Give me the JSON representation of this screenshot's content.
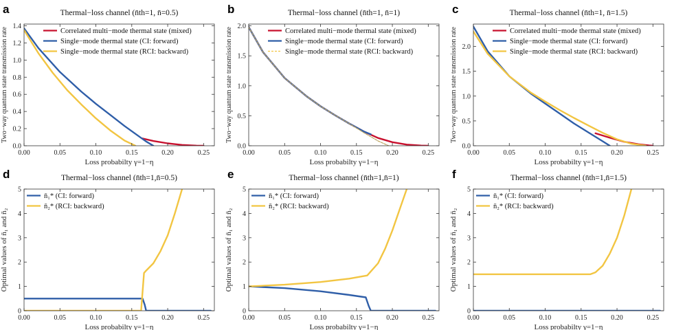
{
  "colors": {
    "red": "#c8102e",
    "blue": "#2f5ea8",
    "yellow": "#f2c542",
    "axis": "#333333"
  },
  "chart_data": [
    {
      "id": "a",
      "letter": "a",
      "type": "line",
      "title": "Thermal−loss channel (n̄th=1, n̄=0.5)",
      "xlabel": "Loss probabilty γ=1−η",
      "ylabel": "Two−way quantum state transmission rate",
      "xlim": [
        0,
        0.265
      ],
      "ylim": [
        0,
        1.42
      ],
      "xticks": [
        0,
        0.05,
        0.1,
        0.15,
        0.2,
        0.25
      ],
      "xtick_labels": [
        "0.00",
        "0.05",
        "0.10",
        "0.15",
        "0.20",
        "0.25"
      ],
      "yticks": [
        0,
        0.2,
        0.4,
        0.6,
        0.8,
        1.0,
        1.2,
        1.4
      ],
      "ytick_labels": [
        "0.0",
        "0.2",
        "0.4",
        "0.6",
        "0.8",
        "1.0",
        "1.2",
        "1.4"
      ],
      "legend": "top-right",
      "series": [
        {
          "name": "Correlated multi−mode thermal state (mixed)",
          "color": "red",
          "style": "solid",
          "x": [
            0.165,
            0.18,
            0.2,
            0.22,
            0.24,
            0.25
          ],
          "y": [
            0.085,
            0.055,
            0.028,
            0.01,
            0.002,
            0.0
          ]
        },
        {
          "name": "Single−mode thermal state (CI: forward)",
          "color": "blue",
          "style": "solid",
          "x": [
            0,
            0.02,
            0.05,
            0.08,
            0.1,
            0.12,
            0.14,
            0.16,
            0.17,
            0.18
          ],
          "y": [
            1.37,
            1.14,
            0.86,
            0.63,
            0.49,
            0.36,
            0.23,
            0.11,
            0.05,
            0.0
          ]
        },
        {
          "name": "Single−mode thermal state (RCI: backward)",
          "color": "yellow",
          "style": "solid",
          "x": [
            0,
            0.02,
            0.04,
            0.06,
            0.08,
            0.1,
            0.12,
            0.14,
            0.155
          ],
          "y": [
            1.35,
            1.08,
            0.85,
            0.65,
            0.48,
            0.32,
            0.18,
            0.06,
            0.0
          ]
        }
      ],
      "legend_entries": [
        "Correlated multi−mode thermal state (mixed)",
        "Single−mode thermal state (CI: forward)",
        "Single−mode thermal state (RCI: backward)"
      ]
    },
    {
      "id": "b",
      "letter": "b",
      "type": "line",
      "title": "Thermal−loss channel (n̄th=1, n̄=1)",
      "xlabel": "Loss probabilty γ=1−η",
      "ylabel": "Two−way quantum state transmission rate",
      "xlim": [
        0,
        0.265
      ],
      "ylim": [
        0,
        2.03
      ],
      "xticks": [
        0,
        0.05,
        0.1,
        0.15,
        0.2,
        0.25
      ],
      "xtick_labels": [
        "0.00",
        "0.05",
        "0.10",
        "0.15",
        "0.20",
        "0.25"
      ],
      "yticks": [
        0,
        0.5,
        1.0,
        1.5,
        2.0
      ],
      "ytick_labels": [
        "0.0",
        "0.5",
        "1.0",
        "1.5",
        "2.0"
      ],
      "legend": "top-right",
      "series": [
        {
          "name": "Correlated multi−mode thermal state (mixed)",
          "color": "red",
          "style": "solid",
          "x": [
            0,
            0.02,
            0.05,
            0.08,
            0.1,
            0.12,
            0.14,
            0.16,
            0.18,
            0.2,
            0.22,
            0.24,
            0.25
          ],
          "y": [
            1.98,
            1.56,
            1.13,
            0.83,
            0.66,
            0.51,
            0.37,
            0.24,
            0.13,
            0.06,
            0.02,
            0.004,
            0.0
          ]
        },
        {
          "name": "Single−mode thermal state (CI: forward)",
          "color": "blue",
          "style": "solid",
          "x": [
            0,
            0.02,
            0.05,
            0.08,
            0.1,
            0.12,
            0.14,
            0.16,
            0.17
          ],
          "y": [
            1.98,
            1.56,
            1.13,
            0.83,
            0.66,
            0.51,
            0.37,
            0.24,
            0.19
          ]
        },
        {
          "name": "Single−mode thermal state (RCI: backward)",
          "color": "yellow",
          "style": "dashed",
          "x": [
            0,
            0.02,
            0.05,
            0.08,
            0.1,
            0.12,
            0.14,
            0.16,
            0.18,
            0.195
          ],
          "y": [
            1.98,
            1.56,
            1.13,
            0.83,
            0.66,
            0.51,
            0.37,
            0.22,
            0.08,
            0.0
          ]
        }
      ],
      "legend_entries": [
        "Correlated multi−mode thermal state (mixed)",
        "Single−mode thermal state (CI: forward)",
        "Single−mode thermal state (RCI: backward)"
      ]
    },
    {
      "id": "c",
      "letter": "c",
      "type": "line",
      "title": "Thermal−loss channel (n̄th=1, n̄=1.5)",
      "xlabel": "Loss probabilty γ=1−η",
      "ylabel": "Two−way quantum state transmission rate",
      "xlim": [
        0,
        0.265
      ],
      "ylim": [
        0,
        2.45
      ],
      "xticks": [
        0,
        0.05,
        0.1,
        0.15,
        0.2,
        0.25
      ],
      "xtick_labels": [
        "0.00",
        "0.05",
        "0.10",
        "0.15",
        "0.20",
        "0.25"
      ],
      "yticks": [
        0,
        0.5,
        1.0,
        1.5,
        2.0
      ],
      "ytick_labels": [
        "0.0",
        "0.5",
        "1.0",
        "1.5",
        "2.0"
      ],
      "legend": "top-right",
      "series": [
        {
          "name": "Correlated multi−mode thermal state (mixed)",
          "color": "red",
          "style": "solid",
          "x": [
            0.17,
            0.19,
            0.21,
            0.23,
            0.245,
            0.25
          ],
          "y": [
            0.25,
            0.16,
            0.08,
            0.03,
            0.005,
            0.0
          ]
        },
        {
          "name": "Single−mode thermal state (CI: forward)",
          "color": "blue",
          "style": "solid",
          "x": [
            0,
            0.02,
            0.05,
            0.08,
            0.1,
            0.12,
            0.14,
            0.16,
            0.18,
            0.19
          ],
          "y": [
            2.4,
            1.9,
            1.4,
            1.05,
            0.85,
            0.65,
            0.45,
            0.27,
            0.09,
            0.0
          ]
        },
        {
          "name": "Single−mode thermal state (RCI: backward)",
          "color": "yellow",
          "style": "solid",
          "x": [
            0,
            0.02,
            0.05,
            0.08,
            0.1,
            0.12,
            0.14,
            0.16,
            0.18,
            0.2,
            0.22,
            0.24
          ],
          "y": [
            2.3,
            1.85,
            1.4,
            1.07,
            0.89,
            0.72,
            0.56,
            0.41,
            0.26,
            0.13,
            0.04,
            0.0
          ]
        }
      ],
      "legend_entries": [
        "Correlated multi−mode thermal state (mixed)",
        "Single−mode thermal state (CI: forward)",
        "Single−mode thermal state (RCI: backward)"
      ]
    },
    {
      "id": "d",
      "letter": "d",
      "type": "line",
      "title": "Thermal−loss channel (n̄th=1,n̄=0.5)",
      "xlabel": "Loss probabilty γ=1−η",
      "ylabel": "Optimal values of n̄₁ and n̄₂",
      "xlim": [
        0,
        0.265
      ],
      "ylim": [
        0,
        5
      ],
      "xticks": [
        0,
        0.05,
        0.1,
        0.15,
        0.2,
        0.25
      ],
      "xtick_labels": [
        "0.00",
        "0.05",
        "0.10",
        "0.15",
        "0.20",
        "0.25"
      ],
      "yticks": [
        0,
        1,
        2,
        3,
        4,
        5
      ],
      "ytick_labels": [
        "0",
        "1",
        "2",
        "3",
        "4",
        "5"
      ],
      "legend": "top-left",
      "series": [
        {
          "name": "n̄₁* (CI: forward)",
          "color": "blue",
          "style": "solid",
          "x": [
            0,
            0.165,
            0.168,
            0.17,
            0.26
          ],
          "y": [
            0.5,
            0.5,
            0.25,
            0.0,
            0.0
          ]
        },
        {
          "name": "n̄₂* (RCI: backward)",
          "color": "yellow",
          "style": "solid",
          "x": [
            0,
            0.163,
            0.167,
            0.17,
            0.18,
            0.19,
            0.2,
            0.21,
            0.22
          ],
          "y": [
            0,
            0,
            1.55,
            1.65,
            1.95,
            2.45,
            3.1,
            4.0,
            5.0
          ]
        }
      ],
      "legend_entries": [
        "n̄₁* (CI: forward)",
        "n̄₂* (RCI: backward)"
      ]
    },
    {
      "id": "e",
      "letter": "e",
      "type": "line",
      "title": "Thermal−loss channel (n̄th=1,n̄=1)",
      "xlabel": "Loss probabilty γ=1−η",
      "ylabel": "Optimal values of n̄₁ and n̄₂",
      "xlim": [
        0,
        0.265
      ],
      "ylim": [
        0,
        5
      ],
      "xticks": [
        0,
        0.05,
        0.1,
        0.15,
        0.2,
        0.25
      ],
      "xtick_labels": [
        "0.00",
        "0.05",
        "0.10",
        "0.15",
        "0.20",
        "0.25"
      ],
      "yticks": [
        0,
        1,
        2,
        3,
        4,
        5
      ],
      "ytick_labels": [
        "0",
        "1",
        "2",
        "3",
        "4",
        "5"
      ],
      "legend": "top-left",
      "series": [
        {
          "name": "n̄₁* (CI: forward)",
          "color": "blue",
          "style": "solid",
          "x": [
            0,
            0.05,
            0.1,
            0.14,
            0.163,
            0.167,
            0.17,
            0.26
          ],
          "y": [
            1.0,
            0.93,
            0.8,
            0.65,
            0.55,
            0.2,
            0.0,
            0.0
          ]
        },
        {
          "name": "n̄₂* (RCI: backward)",
          "color": "yellow",
          "style": "solid",
          "x": [
            0,
            0.05,
            0.1,
            0.14,
            0.165,
            0.18,
            0.19,
            0.2,
            0.21,
            0.22
          ],
          "y": [
            1.0,
            1.07,
            1.18,
            1.32,
            1.45,
            1.95,
            2.55,
            3.3,
            4.15,
            5.0
          ]
        }
      ],
      "legend_entries": [
        "n̄₁* (CI: forward)",
        "n̄₂* (RCI: backward)"
      ]
    },
    {
      "id": "f",
      "letter": "f",
      "type": "line",
      "title": "Thermal−loss channel (n̄th=1,n̄=1.5)",
      "xlabel": "Loss probabilty γ=1−η",
      "ylabel": "Optimal values of n̄₁ and n̄₂",
      "xlim": [
        0,
        0.265
      ],
      "ylim": [
        0,
        5
      ],
      "xticks": [
        0,
        0.05,
        0.1,
        0.15,
        0.2,
        0.25
      ],
      "xtick_labels": [
        "0.00",
        "0.05",
        "0.10",
        "0.15",
        "0.20",
        "0.25"
      ],
      "yticks": [
        0,
        1,
        2,
        3,
        4,
        5
      ],
      "ytick_labels": [
        "0",
        "1",
        "2",
        "3",
        "4",
        "5"
      ],
      "legend": "top-left",
      "series": [
        {
          "name": "n̄₁* (CI: forward)",
          "color": "blue",
          "style": "solid",
          "x": [
            0,
            0.26
          ],
          "y": [
            0,
            0
          ]
        },
        {
          "name": "n̄₂* (RCI: backward)",
          "color": "yellow",
          "style": "solid",
          "x": [
            0,
            0.163,
            0.17,
            0.18,
            0.19,
            0.2,
            0.21,
            0.22
          ],
          "y": [
            1.5,
            1.5,
            1.58,
            1.85,
            2.35,
            3.0,
            3.9,
            5.0
          ]
        }
      ],
      "legend_entries": [
        "n̄₁* (CI: forward)",
        "n̄₂* (RCI: backward)"
      ]
    }
  ]
}
